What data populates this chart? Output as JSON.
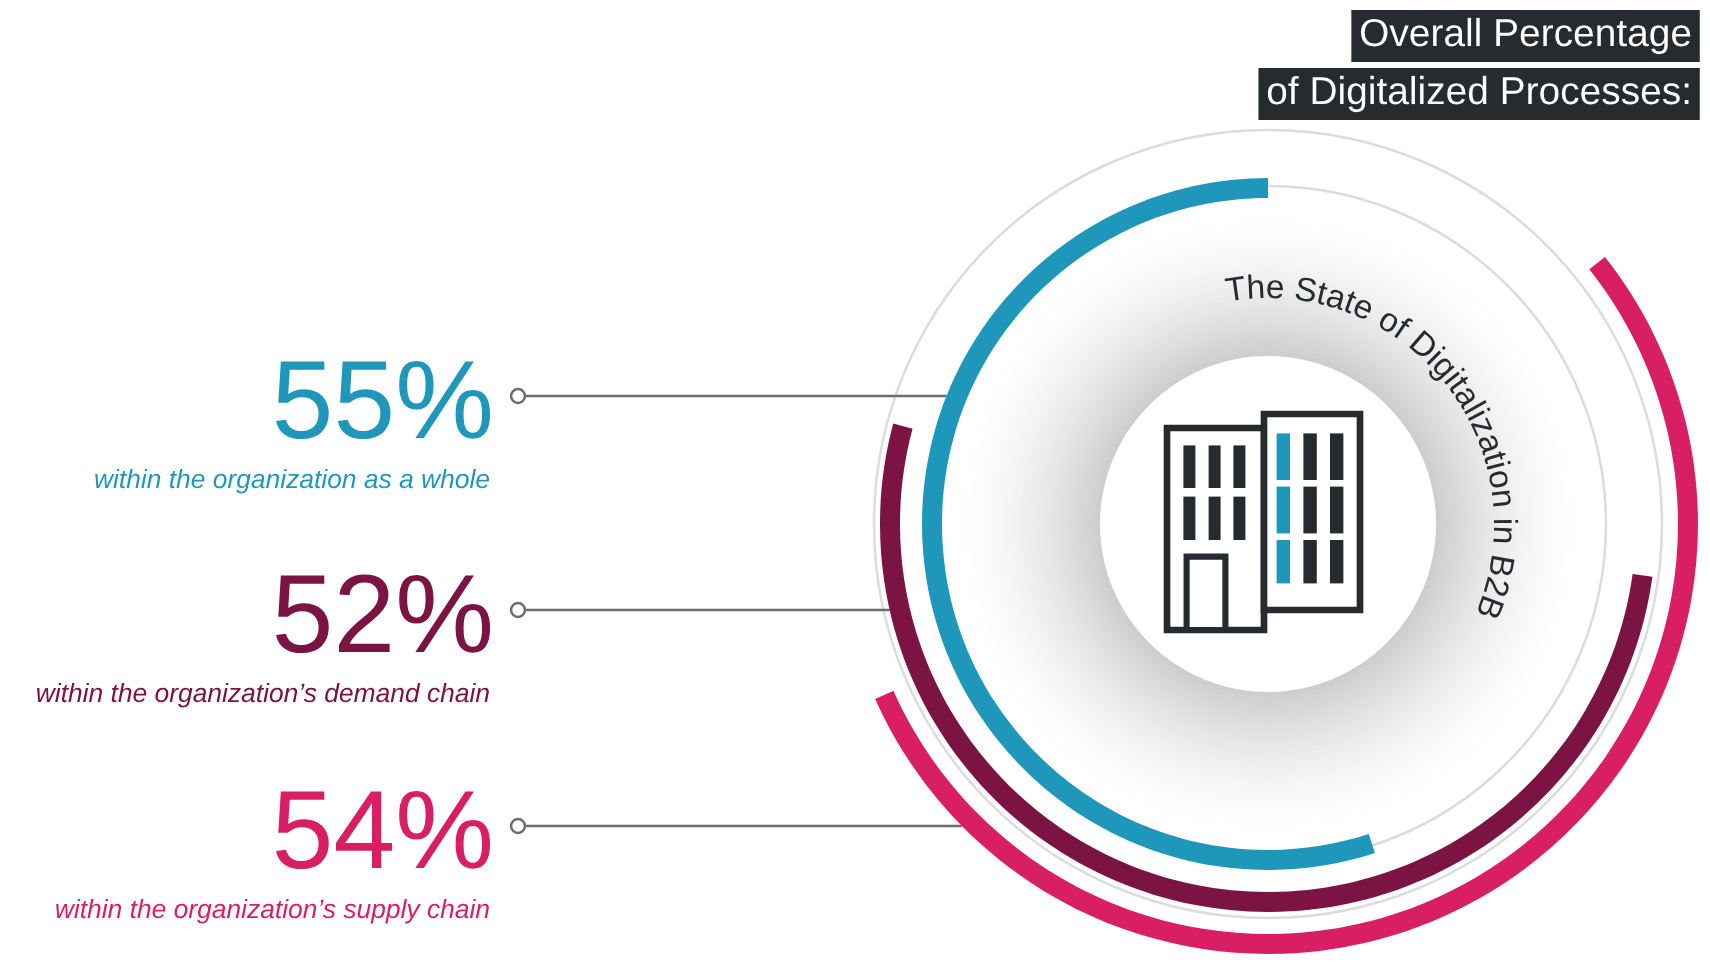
{
  "chart_data": {
    "type": "other",
    "title": "The State of Digitalization in B2B",
    "subtitle": "Overall Percentage\nof Digitalized Processes:",
    "categories": [
      "within the organization as a whole",
      "within the organization’s demand chain",
      "within the organization’s supply chain"
    ],
    "values": [
      55,
      52,
      54
    ],
    "value_labels": [
      "55%",
      "52%",
      "54%"
    ],
    "colors": [
      "#1e97bb",
      "#7b1442",
      "#d91f63"
    ]
  }
}
